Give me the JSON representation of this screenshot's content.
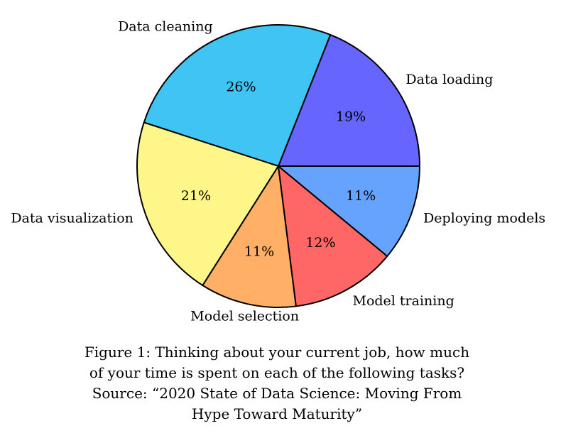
{
  "chart_data": {
    "type": "pie",
    "title": "",
    "slices": [
      {
        "label": "Data loading",
        "value": 19,
        "display": "19%",
        "color": "#6666ff"
      },
      {
        "label": "Data cleaning",
        "value": 26,
        "display": "26%",
        "color": "#40c4f4"
      },
      {
        "label": "Data visualization",
        "value": 21,
        "display": "21%",
        "color": "#fff68a"
      },
      {
        "label": "Model selection",
        "value": 11,
        "display": "11%",
        "color": "#ffb066"
      },
      {
        "label": "Model training",
        "value": 12,
        "display": "12%",
        "color": "#ff6666"
      },
      {
        "label": "Deploying models",
        "value": 11,
        "display": "11%",
        "color": "#66a3ff"
      }
    ],
    "start_angle_deg": 0,
    "direction": "counterclockwise",
    "outline_color": "#000000"
  },
  "caption": {
    "line1": "Figure 1: Thinking about your current job, how much",
    "line2": "of your time is spent on each of the following tasks?",
    "line3": "Source:  “2020 State of Data Science: Moving From",
    "line4": "Hype Toward Maturity”"
  }
}
